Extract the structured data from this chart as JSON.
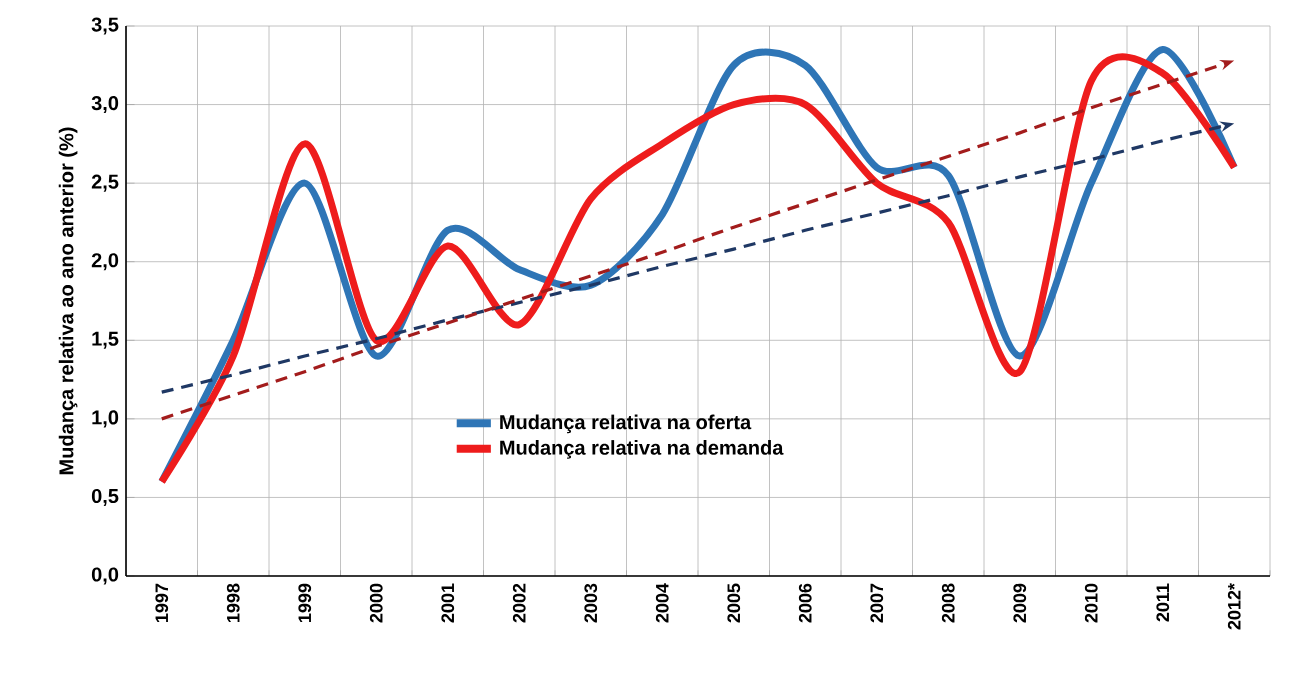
{
  "chart_data": {
    "type": "line",
    "ylabel": "Mudança relativa ao ano anterior (%)",
    "categories": [
      "1997",
      "1998",
      "1999",
      "2000",
      "2001",
      "2002",
      "2003",
      "2004",
      "2005",
      "2006",
      "2007",
      "2008",
      "2009",
      "2010",
      "2011",
      "2012*"
    ],
    "series": [
      {
        "name": "Mudança relativa na oferta",
        "color": "#2e75b6",
        "values": [
          0.6,
          1.5,
          2.5,
          1.4,
          2.2,
          1.95,
          1.85,
          2.3,
          3.25,
          3.25,
          2.6,
          2.55,
          1.4,
          2.5,
          3.35,
          2.6
        ]
      },
      {
        "name": "Mudança relativa na demanda",
        "color": "#ee1c1c",
        "values": [
          0.6,
          1.4,
          2.75,
          1.5,
          2.1,
          1.6,
          2.4,
          2.75,
          3.0,
          3.0,
          2.5,
          2.25,
          1.3,
          3.15,
          3.2,
          2.6
        ]
      },
      {
        "color": "#1f3864",
        "line_style": "dashed",
        "values": [
          1.17,
          1.28,
          1.4,
          1.51,
          1.63,
          1.74,
          1.85,
          1.97,
          2.08,
          2.2,
          2.31,
          2.42,
          2.54,
          2.65,
          2.77,
          2.88
        ]
      },
      {
        "color": "#a31c1c",
        "line_style": "dashed",
        "values": [
          1.0,
          1.15,
          1.3,
          1.46,
          1.61,
          1.76,
          1.91,
          2.06,
          2.22,
          2.37,
          2.52,
          2.67,
          2.82,
          2.98,
          3.13,
          3.28
        ]
      }
    ],
    "ylim": [
      0,
      3.5
    ],
    "yticks": [
      {
        "value": 0,
        "label": "0,0"
      },
      {
        "value": 0.5,
        "label": "0,5"
      },
      {
        "value": 1,
        "label": "1,0"
      },
      {
        "value": 1.5,
        "label": "1,5"
      },
      {
        "value": 2,
        "label": "2,0"
      },
      {
        "value": 2.5,
        "label": "2,5"
      },
      {
        "value": 3,
        "label": "3,0"
      },
      {
        "value": 3.5,
        "label": "3,5"
      }
    ],
    "grid": true,
    "legend": "bottom",
    "marker": "none",
    "line_style": "solid"
  }
}
